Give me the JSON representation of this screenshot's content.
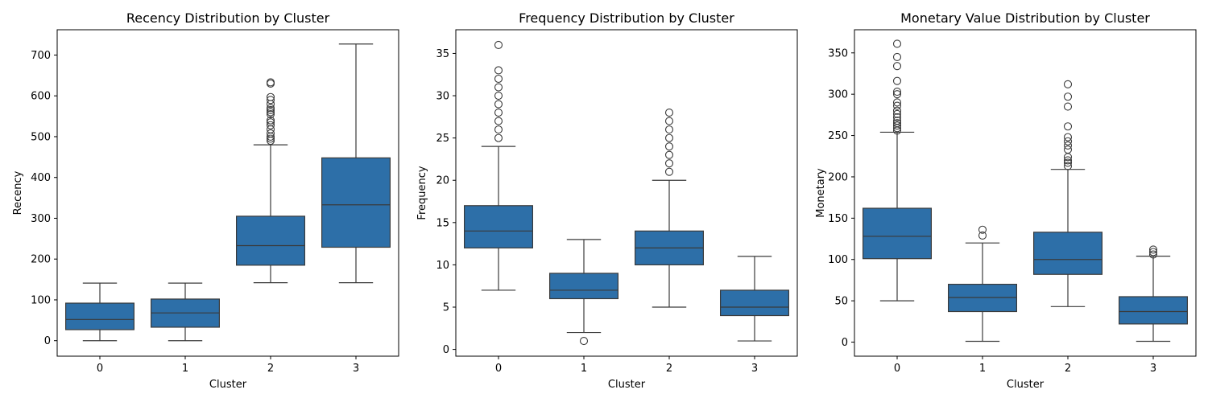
{
  "chart_data": [
    {
      "type": "box",
      "title": "Recency Distribution by Cluster",
      "xlabel": "Cluster",
      "ylabel": "Recency",
      "categories": [
        "0",
        "1",
        "2",
        "3"
      ],
      "ylim": [
        -38,
        762
      ],
      "yticks": [
        0,
        100,
        200,
        300,
        400,
        500,
        600,
        700
      ],
      "boxes": [
        {
          "whisker_low": 0,
          "q1": 27,
          "median": 52,
          "q3": 92,
          "whisker_high": 141,
          "outliers": []
        },
        {
          "whisker_low": 0,
          "q1": 33,
          "median": 68,
          "q3": 102,
          "whisker_high": 141,
          "outliers": []
        },
        {
          "whisker_low": 142,
          "q1": 185,
          "median": 233,
          "q3": 305,
          "whisker_high": 480,
          "outliers": [
            490,
            495,
            500,
            508,
            518,
            528,
            535,
            540,
            555,
            560,
            565,
            570,
            580,
            590,
            597,
            630,
            633
          ]
        },
        {
          "whisker_low": 142,
          "q1": 229,
          "median": 333,
          "q3": 448,
          "whisker_high": 727,
          "outliers": []
        }
      ]
    },
    {
      "type": "box",
      "title": "Frequency Distribution by Cluster",
      "xlabel": "Cluster",
      "ylabel": "Frequency",
      "categories": [
        "0",
        "1",
        "2",
        "3"
      ],
      "ylim": [
        -0.8,
        37.8
      ],
      "yticks": [
        0,
        5,
        10,
        15,
        20,
        25,
        30,
        35
      ],
      "boxes": [
        {
          "whisker_low": 7,
          "q1": 12,
          "median": 14,
          "q3": 17,
          "whisker_high": 24,
          "outliers": [
            25,
            26,
            27,
            28,
            29,
            30,
            31,
            32,
            33,
            36
          ]
        },
        {
          "whisker_low": 2,
          "q1": 6,
          "median": 7,
          "q3": 9,
          "whisker_high": 13,
          "outliers": [
            1
          ]
        },
        {
          "whisker_low": 5,
          "q1": 10,
          "median": 12,
          "q3": 14,
          "whisker_high": 20,
          "outliers": [
            21,
            22,
            23,
            24,
            25,
            26,
            27,
            28
          ]
        },
        {
          "whisker_low": 1,
          "q1": 4,
          "median": 5,
          "q3": 7,
          "whisker_high": 11,
          "outliers": []
        }
      ]
    },
    {
      "type": "box",
      "title": "Monetary Value Distribution by Cluster",
      "xlabel": "Cluster",
      "ylabel": "Monetary",
      "categories": [
        "0",
        "1",
        "2",
        "3"
      ],
      "ylim": [
        -17,
        378
      ],
      "yticks": [
        0,
        50,
        100,
        150,
        200,
        250,
        300,
        350
      ],
      "boxes": [
        {
          "whisker_low": 50,
          "q1": 101,
          "median": 128,
          "q3": 162,
          "whisker_high": 254,
          "outliers": [
            256,
            259,
            262,
            265,
            268,
            272,
            276,
            280,
            286,
            290,
            300,
            303,
            316,
            334,
            345,
            361
          ]
        },
        {
          "whisker_low": 1,
          "q1": 37,
          "median": 54,
          "q3": 70,
          "whisker_high": 120,
          "outliers": [
            129,
            136
          ]
        },
        {
          "whisker_low": 43,
          "q1": 82,
          "median": 100,
          "q3": 133,
          "whisker_high": 209,
          "outliers": [
            213,
            217,
            220,
            224,
            233,
            238,
            243,
            248,
            261,
            285,
            297,
            312
          ]
        },
        {
          "whisker_low": 1,
          "q1": 22,
          "median": 37,
          "q3": 55,
          "whisker_high": 104,
          "outliers": [
            106,
            109,
            112
          ]
        }
      ]
    }
  ],
  "colors": {
    "box_fill": "#2d6fa8",
    "line": "#3a3a3a",
    "axis": "#000000"
  }
}
